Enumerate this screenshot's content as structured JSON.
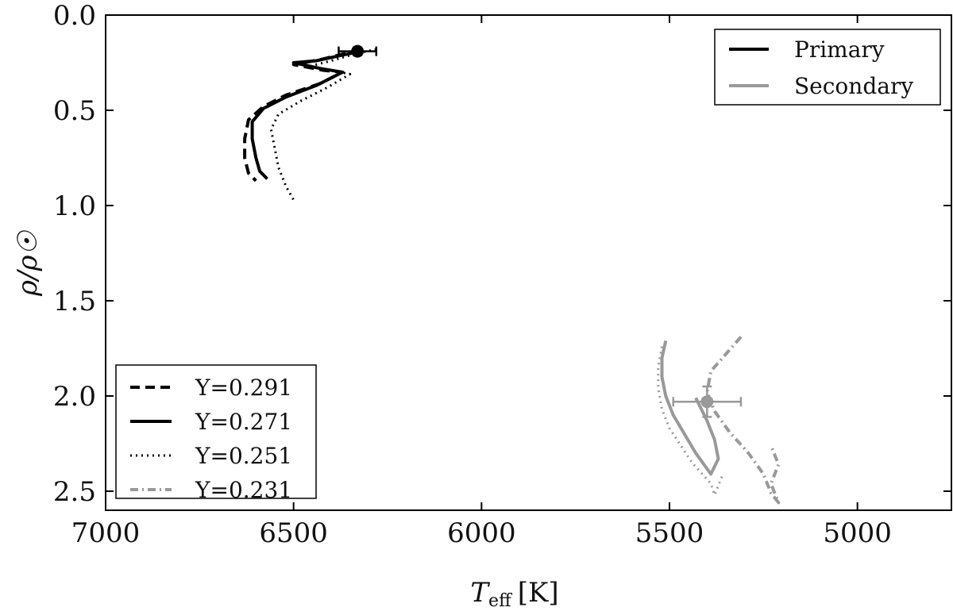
{
  "chart_data": {
    "type": "line",
    "xlabel_main": "T",
    "xlabel_sub": "eff",
    "xlabel_unit": "[K]",
    "ylabel": "ρ/ρ☉",
    "xlim": [
      7000,
      4750
    ],
    "ylim": [
      0.0,
      2.6
    ],
    "x_inverted": true,
    "y_inverted": true,
    "grid": false,
    "xticks": [
      7000,
      6500,
      6000,
      5500,
      5000
    ],
    "yticks": [
      0.0,
      0.5,
      1.0,
      1.5,
      2.0,
      2.5
    ],
    "xtick_labels": [
      "7000",
      "6500",
      "6000",
      "5500",
      "5000"
    ],
    "ytick_labels": [
      "0.0",
      "0.5",
      "1.0",
      "1.5",
      "2.0",
      "2.5"
    ],
    "colors": {
      "primary": "#000000",
      "secondary": "#999999"
    },
    "legend_components": {
      "placement": "top-right",
      "entries": [
        {
          "label": "Primary",
          "color": "#000000",
          "linestyle": "solid"
        },
        {
          "label": "Secondary",
          "color": "#999999",
          "linestyle": "solid"
        }
      ]
    },
    "legend_helium": {
      "placement": "lower-left",
      "entries": [
        {
          "label": "Y=0.291",
          "color": "#000000",
          "linestyle": "dashed"
        },
        {
          "label": "Y=0.271",
          "color": "#000000",
          "linestyle": "solid"
        },
        {
          "label": "Y=0.251",
          "color": "#000000",
          "linestyle": "dotted"
        },
        {
          "label": "Y=0.231",
          "color": "#999999",
          "linestyle": "dashdot"
        }
      ]
    },
    "series": [
      {
        "component": "Primary",
        "helium": "Y=0.291",
        "linestyle": "dashed",
        "color": "#000000",
        "points": [
          [
            6320,
            0.19
          ],
          [
            6360,
            0.2
          ],
          [
            6420,
            0.23
          ],
          [
            6500,
            0.26
          ],
          [
            6420,
            0.29
          ],
          [
            6370,
            0.3
          ],
          [
            6430,
            0.36
          ],
          [
            6520,
            0.42
          ],
          [
            6580,
            0.48
          ],
          [
            6620,
            0.55
          ],
          [
            6630,
            0.65
          ],
          [
            6630,
            0.75
          ],
          [
            6620,
            0.83
          ],
          [
            6600,
            0.87
          ]
        ]
      },
      {
        "component": "Primary",
        "helium": "Y=0.271",
        "linestyle": "solid",
        "color": "#000000",
        "points": [
          [
            6320,
            0.19
          ],
          [
            6370,
            0.21
          ],
          [
            6440,
            0.24
          ],
          [
            6500,
            0.25
          ],
          [
            6430,
            0.28
          ],
          [
            6370,
            0.3
          ],
          [
            6440,
            0.37
          ],
          [
            6520,
            0.43
          ],
          [
            6580,
            0.49
          ],
          [
            6610,
            0.56
          ],
          [
            6610,
            0.65
          ],
          [
            6600,
            0.75
          ],
          [
            6590,
            0.82
          ],
          [
            6570,
            0.86
          ]
        ]
      },
      {
        "component": "Primary",
        "helium": "Y=0.251",
        "linestyle": "dotted",
        "color": "#000000",
        "points": [
          [
            6280,
            0.18
          ],
          [
            6330,
            0.2
          ],
          [
            6400,
            0.24
          ],
          [
            6460,
            0.27
          ],
          [
            6400,
            0.29
          ],
          [
            6350,
            0.31
          ],
          [
            6410,
            0.38
          ],
          [
            6480,
            0.45
          ],
          [
            6540,
            0.52
          ],
          [
            6560,
            0.6
          ],
          [
            6550,
            0.7
          ],
          [
            6540,
            0.8
          ],
          [
            6520,
            0.9
          ],
          [
            6500,
            0.97
          ]
        ]
      },
      {
        "component": "Secondary",
        "helium": "Y=0.271",
        "linestyle": "solid",
        "color": "#999999",
        "points": [
          [
            5510,
            1.71
          ],
          [
            5520,
            1.8
          ],
          [
            5520,
            1.9
          ],
          [
            5510,
            2.0
          ],
          [
            5490,
            2.1
          ],
          [
            5460,
            2.2
          ],
          [
            5430,
            2.3
          ],
          [
            5390,
            2.41
          ],
          [
            5370,
            2.33
          ],
          [
            5380,
            2.23
          ],
          [
            5400,
            2.13
          ],
          [
            5430,
            2.01
          ]
        ]
      },
      {
        "component": "Secondary",
        "helium": "Y=0.251",
        "linestyle": "dotted",
        "color": "#999999",
        "points": [
          [
            5520,
            1.74
          ],
          [
            5530,
            1.85
          ],
          [
            5530,
            1.96
          ],
          [
            5520,
            2.07
          ],
          [
            5500,
            2.17
          ],
          [
            5470,
            2.26
          ],
          [
            5440,
            2.35
          ],
          [
            5390,
            2.46
          ],
          [
            5380,
            2.52
          ],
          [
            5360,
            2.42
          ]
        ]
      },
      {
        "component": "Secondary",
        "helium": "Y=0.231",
        "linestyle": "dashdot",
        "color": "#999999",
        "points": [
          [
            5310,
            1.69
          ],
          [
            5350,
            1.78
          ],
          [
            5390,
            1.87
          ],
          [
            5400,
            1.98
          ],
          [
            5380,
            2.08
          ],
          [
            5340,
            2.19
          ],
          [
            5290,
            2.3
          ],
          [
            5250,
            2.41
          ],
          [
            5230,
            2.51
          ],
          [
            5210,
            2.56
          ],
          [
            5230,
            2.46
          ],
          [
            5210,
            2.36
          ],
          [
            5230,
            2.26
          ]
        ]
      }
    ],
    "observations": [
      {
        "component": "Primary",
        "x": 6330,
        "y": 0.19,
        "xerr": 50,
        "yerr": 0.02,
        "color": "#000000"
      },
      {
        "component": "Secondary",
        "x": 5400,
        "y": 2.03,
        "xerr": 90,
        "yerr": 0.08,
        "color": "#999999"
      }
    ]
  }
}
